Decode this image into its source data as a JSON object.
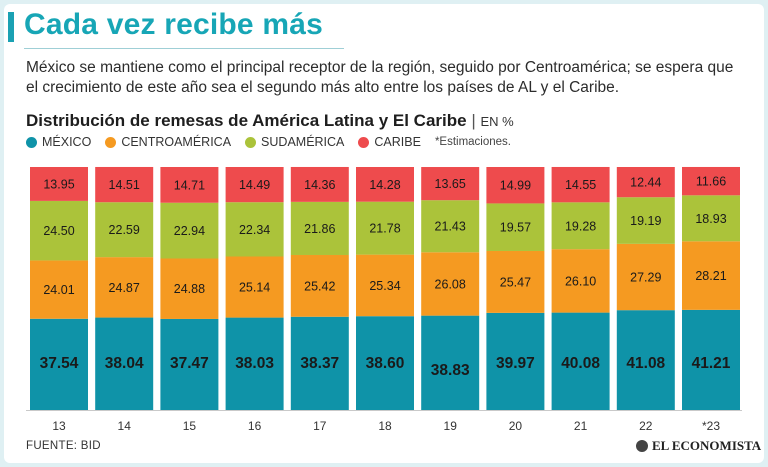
{
  "header": {
    "title": "Cada vez recibe más",
    "subtitle": "México se mantiene como el principal receptor de la región, seguido por Centroamérica; se espera que el crecimiento de este año sea el segundo más alto entre los países de AL y el Caribe."
  },
  "chart_heading": {
    "title": "Distribución de remesas de América Latina y El Caribe",
    "separator": "|",
    "unit": "EN %"
  },
  "legend": {
    "items": [
      {
        "label": "MÉXICO",
        "color": "#0f93a8"
      },
      {
        "label": "CENTROAMÉRICA",
        "color": "#f59a21"
      },
      {
        "label": "SUDAMÉRICA",
        "color": "#abc33a"
      },
      {
        "label": "CARIBE",
        "color": "#ee4b4d"
      }
    ],
    "note": "*Estimaciones."
  },
  "chart_data": {
    "type": "bar",
    "stacked": true,
    "title": "Distribución de remesas de América Latina y El Caribe",
    "ylabel": "EN %",
    "ylim": [
      0,
      100
    ],
    "categories": [
      "13",
      "14",
      "15",
      "16",
      "17",
      "18",
      "19",
      "20",
      "21",
      "22",
      "*23"
    ],
    "series": [
      {
        "name": "MÉXICO",
        "color": "#0f93a8",
        "values": [
          37.54,
          38.04,
          37.47,
          38.03,
          38.37,
          38.6,
          38.83,
          39.97,
          40.08,
          41.08,
          41.21
        ]
      },
      {
        "name": "CENTROAMÉRICA",
        "color": "#f59a21",
        "values": [
          24.01,
          24.87,
          24.88,
          25.14,
          25.42,
          25.34,
          26.08,
          25.47,
          26.1,
          27.29,
          28.21
        ]
      },
      {
        "name": "SUDAMÉRICA",
        "color": "#abc33a",
        "values": [
          24.5,
          22.59,
          22.94,
          22.34,
          21.86,
          21.78,
          21.43,
          19.57,
          19.28,
          19.19,
          18.93
        ]
      },
      {
        "name": "CARIBE",
        "color": "#ee4b4d",
        "values": [
          13.95,
          14.51,
          14.71,
          14.49,
          14.36,
          14.28,
          13.65,
          14.99,
          14.55,
          12.44,
          11.66
        ]
      }
    ]
  },
  "footer": {
    "source": "FUENTE: BID",
    "logo_text": "EL ECONOMISTA"
  }
}
